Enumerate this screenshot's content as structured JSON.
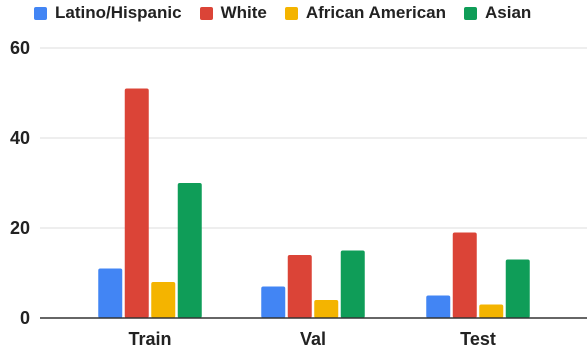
{
  "chart_data": {
    "type": "bar",
    "categories": [
      "Train",
      "Val",
      "Test"
    ],
    "series": [
      {
        "name": "Latino/Hispanic",
        "color": "#4285F4",
        "values": [
          11,
          7,
          5
        ]
      },
      {
        "name": "White",
        "color": "#DB4437",
        "values": [
          51,
          14,
          19
        ]
      },
      {
        "name": "African American",
        "color": "#F4B400",
        "values": [
          8,
          4,
          3
        ]
      },
      {
        "name": "Asian",
        "color": "#0F9D58",
        "values": [
          30,
          15,
          13
        ]
      }
    ],
    "title": "",
    "xlabel": "",
    "ylabel": "",
    "ylim": [
      0,
      60
    ],
    "yticks": [
      0,
      20,
      40,
      60
    ],
    "grid": true,
    "legend_position": "top-left"
  }
}
